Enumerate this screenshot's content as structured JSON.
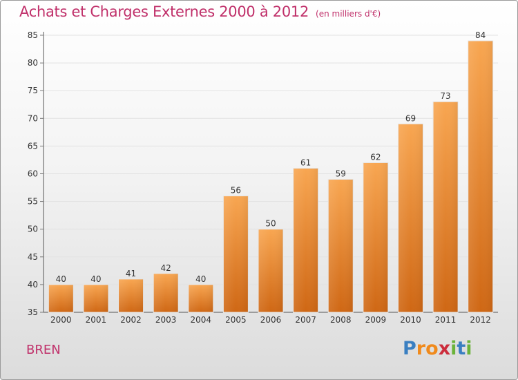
{
  "title": "Achats et Charges Externes 2000 à 2012",
  "subtitle": "(en milliers d'€)",
  "commune": "BREN",
  "logo": {
    "letters": [
      "P",
      "r",
      "o",
      "x",
      "i",
      "t",
      "i"
    ],
    "colors": [
      "#3a7fc1",
      "#f08a1c",
      "#f08a1c",
      "#cc2d3c",
      "#6bb33a",
      "#3a7fc1",
      "#6bb33a"
    ]
  },
  "colors": {
    "title": "#c0306a",
    "bar_top": "#f8a651",
    "bar_bottom": "#cf6714"
  },
  "chart_data": {
    "type": "bar",
    "title": "Achats et Charges Externes 2000 à 2012",
    "subtitle": "(en milliers d'€)",
    "categories": [
      "2000",
      "2001",
      "2002",
      "2003",
      "2004",
      "2005",
      "2006",
      "2007",
      "2008",
      "2009",
      "2010",
      "2011",
      "2012"
    ],
    "values": [
      40,
      40,
      41,
      42,
      40,
      56,
      50,
      61,
      59,
      62,
      69,
      73,
      84
    ],
    "ylim": [
      35,
      85
    ],
    "yticks": [
      35,
      40,
      45,
      50,
      55,
      60,
      65,
      70,
      75,
      80,
      85
    ],
    "grid": true,
    "xlabel": "",
    "ylabel": ""
  }
}
